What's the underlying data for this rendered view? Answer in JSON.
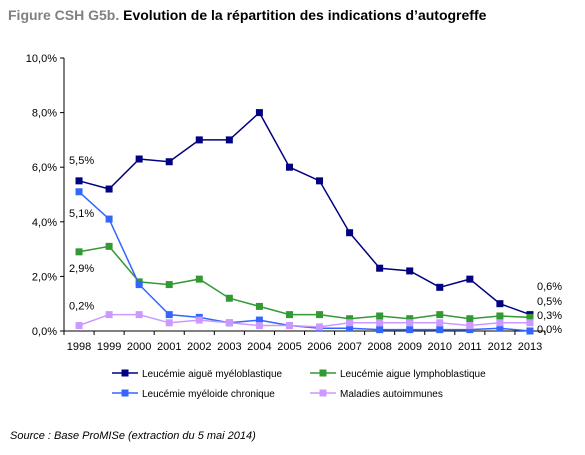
{
  "title": {
    "prefix": "Figure CSH G5b.",
    "main": "Evolution de la répartition des indications d’autogreffe"
  },
  "source": "Source : Base ProMISe (extraction du 5 mai 2014)",
  "chart_data": {
    "type": "line",
    "title": "Figure CSH G5b. Evolution de la répartition des indications d’autogreffe",
    "xlabel": "",
    "ylabel": "",
    "x": [
      "1998",
      "1999",
      "2000",
      "2001",
      "2002",
      "2003",
      "2004",
      "2005",
      "2006",
      "2007",
      "2008",
      "2009",
      "2010",
      "2011",
      "2012",
      "2013"
    ],
    "ylim": [
      0,
      10
    ],
    "yticks": [
      0,
      2,
      4,
      6,
      8,
      10
    ],
    "ytick_labels": [
      "0,0%",
      "2,0%",
      "4,0%",
      "6,0%",
      "8,0%",
      "10,0%"
    ],
    "grid": false,
    "legend_position": "bottom",
    "series": [
      {
        "name": "Leucémie aiguë myéloblastique",
        "color": "#000080",
        "marker": "square",
        "values": [
          5.5,
          5.2,
          6.3,
          6.2,
          7.0,
          7.0,
          8.0,
          6.0,
          5.5,
          3.6,
          2.3,
          2.2,
          1.6,
          1.9,
          1.0,
          0.6
        ]
      },
      {
        "name": "Leucémie aigue lymphoblastique",
        "color": "#339933",
        "marker": "square",
        "values": [
          2.9,
          3.1,
          1.8,
          1.7,
          1.9,
          1.2,
          0.9,
          0.6,
          0.6,
          0.45,
          0.55,
          0.45,
          0.6,
          0.45,
          0.55,
          0.5
        ]
      },
      {
        "name": "Leucémie myéloide chronique",
        "color": "#3366FF",
        "marker": "square",
        "values": [
          5.1,
          4.1,
          1.7,
          0.6,
          0.5,
          0.3,
          0.4,
          0.2,
          0.1,
          0.1,
          0.05,
          0.05,
          0.05,
          0.05,
          0.1,
          0.0
        ]
      },
      {
        "name": "Maladies autoimmunes",
        "color": "#CC99FF",
        "marker": "square",
        "values": [
          0.2,
          0.6,
          0.6,
          0.3,
          0.4,
          0.3,
          0.2,
          0.2,
          0.15,
          0.3,
          0.3,
          0.3,
          0.3,
          0.2,
          0.3,
          0.3
        ]
      }
    ],
    "annotations": [
      {
        "text": "5,5%",
        "x": "1998",
        "series": 0
      },
      {
        "text": "5,1%",
        "x": "1998",
        "series": 2
      },
      {
        "text": "2,9%",
        "x": "1998",
        "series": 1
      },
      {
        "text": "0,2%",
        "x": "1998",
        "series": 3
      },
      {
        "text": "0,6%",
        "x": "2013",
        "series": 0
      },
      {
        "text": "0,5%",
        "x": "2013",
        "series": 1
      },
      {
        "text": "0,3%",
        "x": "2013",
        "series": 3
      },
      {
        "text": "0,0%",
        "x": "2013",
        "series": 2
      }
    ]
  }
}
